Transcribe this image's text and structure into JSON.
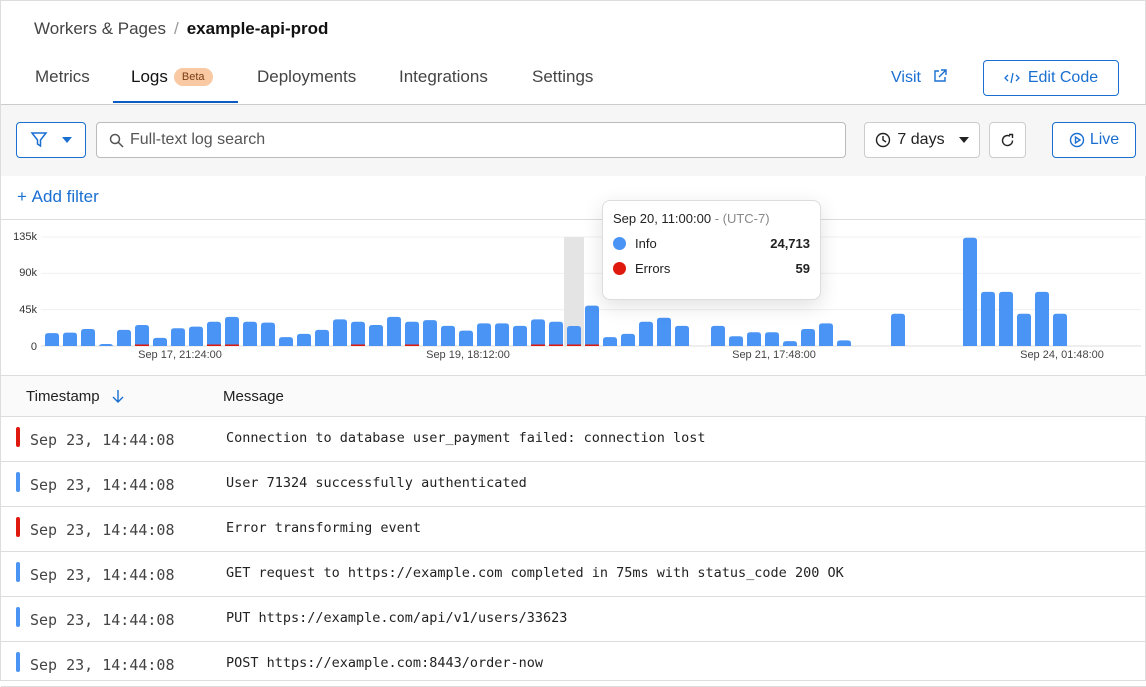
{
  "breadcrumb": {
    "parent": "Workers & Pages",
    "separator": "/",
    "current": "example-api-prod"
  },
  "tabs": [
    {
      "label": "Metrics"
    },
    {
      "label": "Logs",
      "badge": "Beta",
      "active": true
    },
    {
      "label": "Deployments"
    },
    {
      "label": "Integrations"
    },
    {
      "label": "Settings"
    }
  ],
  "header_actions": {
    "visit": "Visit",
    "edit_code": "Edit Code"
  },
  "toolbar": {
    "search_placeholder": "Full-text log search",
    "time_range": "7 days",
    "live": "Live"
  },
  "add_filter": "Add filter",
  "colors": {
    "accent": "#1a6fd1",
    "info": "#4a94f5",
    "error": "#e0190f"
  },
  "chart_data": {
    "type": "bar",
    "stacked": true,
    "y_ticks": [
      "0",
      "45k",
      "90k",
      "135k"
    ],
    "ylim": [
      0,
      135000
    ],
    "x_ticks": [
      {
        "index": 7,
        "label": "Sep 17, 21:24:00"
      },
      {
        "index": 23,
        "label": "Sep 19, 18:12:00"
      },
      {
        "index": 40,
        "label": "Sep 21, 17:48:00"
      },
      {
        "index": 56,
        "label": "Sep 24, 01:48:00"
      }
    ],
    "series": [
      {
        "name": "Info",
        "values": [
          16000,
          16500,
          21000,
          2500,
          20000,
          26000,
          10000,
          22000,
          24000,
          30000,
          36000,
          30000,
          29000,
          11000,
          15000,
          20000,
          33000,
          30000,
          26000,
          36000,
          30000,
          32000,
          25000,
          19000,
          28000,
          28000,
          25000,
          33000,
          30000,
          24713,
          50000,
          11000,
          15000,
          30000,
          35000,
          25000,
          0,
          25000,
          12000,
          17000,
          17000,
          6000,
          21000,
          28000,
          7000,
          0,
          0,
          40000,
          0,
          0,
          0,
          134000,
          67000,
          67000,
          40000,
          67000,
          40000
        ]
      },
      {
        "name": "Errors",
        "values": [
          0,
          0,
          0,
          0,
          0,
          600,
          0,
          0,
          0,
          400,
          400,
          0,
          0,
          0,
          0,
          0,
          0,
          300,
          0,
          0,
          300,
          0,
          0,
          0,
          0,
          0,
          0,
          300,
          500,
          59,
          1800,
          0,
          0,
          0,
          0,
          0,
          0,
          0,
          0,
          0,
          0,
          0,
          0,
          0,
          0,
          0,
          0,
          0,
          0,
          0,
          0,
          0,
          0,
          0,
          0,
          0,
          0
        ]
      }
    ],
    "highlight_index": 29,
    "tooltip": {
      "title": "Sep 20, 11:00:00",
      "timezone": "(UTC-7)",
      "rows": [
        {
          "label": "Info",
          "value": "24,713"
        },
        {
          "label": "Errors",
          "value": "59"
        }
      ]
    }
  },
  "table": {
    "columns": [
      "Timestamp",
      "Message"
    ],
    "rows": [
      {
        "level": "error",
        "timestamp": "Sep 23, 14:44:08",
        "message": "Connection to database user_payment failed: connection lost"
      },
      {
        "level": "info",
        "timestamp": "Sep 23, 14:44:08",
        "message": "User 71324 successfully authenticated"
      },
      {
        "level": "error",
        "timestamp": "Sep 23, 14:44:08",
        "message": "Error transforming event"
      },
      {
        "level": "info",
        "timestamp": "Sep 23, 14:44:08",
        "message": "GET request to https://example.com completed in 75ms with status_code 200 OK"
      },
      {
        "level": "info",
        "timestamp": "Sep 23, 14:44:08",
        "message": "PUT https://example.com/api/v1/users/33623"
      },
      {
        "level": "info",
        "timestamp": "Sep 23, 14:44:08",
        "message": "POST https://example.com:8443/order-now"
      }
    ]
  }
}
